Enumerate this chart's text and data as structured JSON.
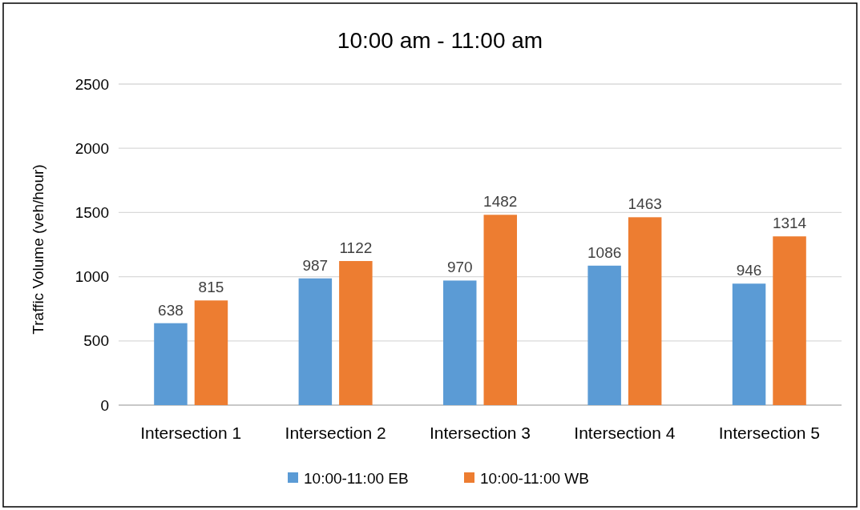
{
  "chart_data": {
    "type": "bar",
    "title": "10:00 am - 11:00 am",
    "ylabel": "Traffic Volume (veh/hour)",
    "categories": [
      "Intersection 1",
      "Intersection 2",
      "Intersection 3",
      "Intersection 4",
      "Intersection 5"
    ],
    "series": [
      {
        "name": "10:00-11:00 EB",
        "color": "#5b9bd5",
        "values": [
          638,
          987,
          970,
          1086,
          946
        ]
      },
      {
        "name": "10:00-11:00 WB",
        "color": "#ed7d31",
        "values": [
          815,
          1122,
          1482,
          1463,
          1314
        ]
      }
    ],
    "ylim": [
      0,
      2500
    ],
    "yticks": [
      0,
      500,
      1000,
      1500,
      2000,
      2500
    ],
    "grid": "y",
    "legend": "bottom",
    "data_labels": true
  }
}
